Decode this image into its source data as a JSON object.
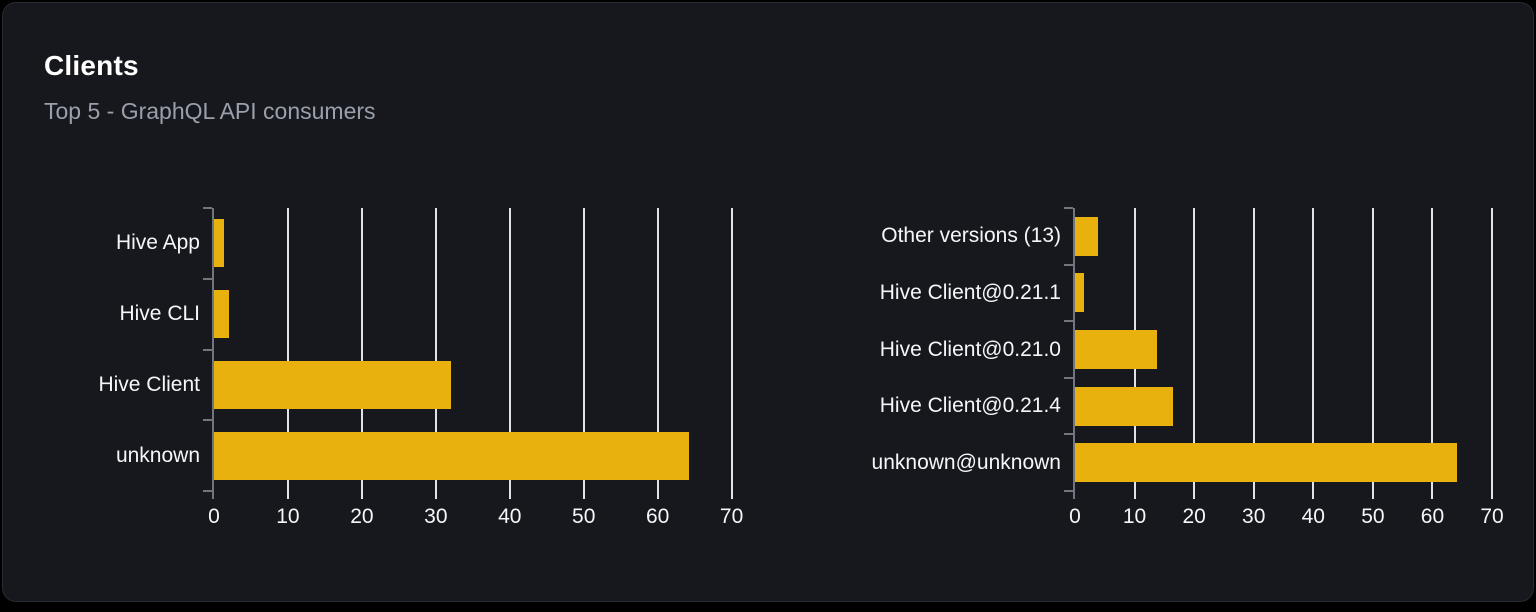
{
  "card": {
    "title": "Clients",
    "subtitle": "Top 5 - GraphQL API consumers"
  },
  "colors": {
    "page_bg": "#000000",
    "card_bg": "#16181d",
    "card_border": "#272b33",
    "bar": "#e8b10e",
    "grid": "#dee3eb",
    "axis": "#70757f",
    "title_text": "#ffffff",
    "subtitle_text": "#9aa0ab",
    "label_text": "#f5f6f8"
  },
  "chart_data": [
    {
      "type": "bar",
      "orientation": "horizontal",
      "categories": [
        "Hive App",
        "Hive CLI",
        "Hive Client",
        "unknown"
      ],
      "values": [
        1.4,
        2.0,
        32.1,
        64.3
      ],
      "xticks": [
        0,
        10,
        20,
        30,
        40,
        50,
        60,
        70
      ],
      "xlim": [
        0,
        71
      ],
      "grid": true,
      "legend": false,
      "bar_color": "#e8b10e"
    },
    {
      "type": "bar",
      "orientation": "horizontal",
      "categories": [
        "Other versions (13)",
        "Hive Client@0.21.1",
        "Hive Client@0.21.0",
        "Hive Client@0.21.4",
        "unknown@unknown"
      ],
      "values": [
        3.8,
        1.5,
        13.8,
        16.4,
        64.2
      ],
      "xticks": [
        0,
        10,
        20,
        30,
        40,
        50,
        60,
        70
      ],
      "xlim": [
        0,
        71
      ],
      "grid": true,
      "legend": false,
      "bar_color": "#e8b10e"
    }
  ]
}
